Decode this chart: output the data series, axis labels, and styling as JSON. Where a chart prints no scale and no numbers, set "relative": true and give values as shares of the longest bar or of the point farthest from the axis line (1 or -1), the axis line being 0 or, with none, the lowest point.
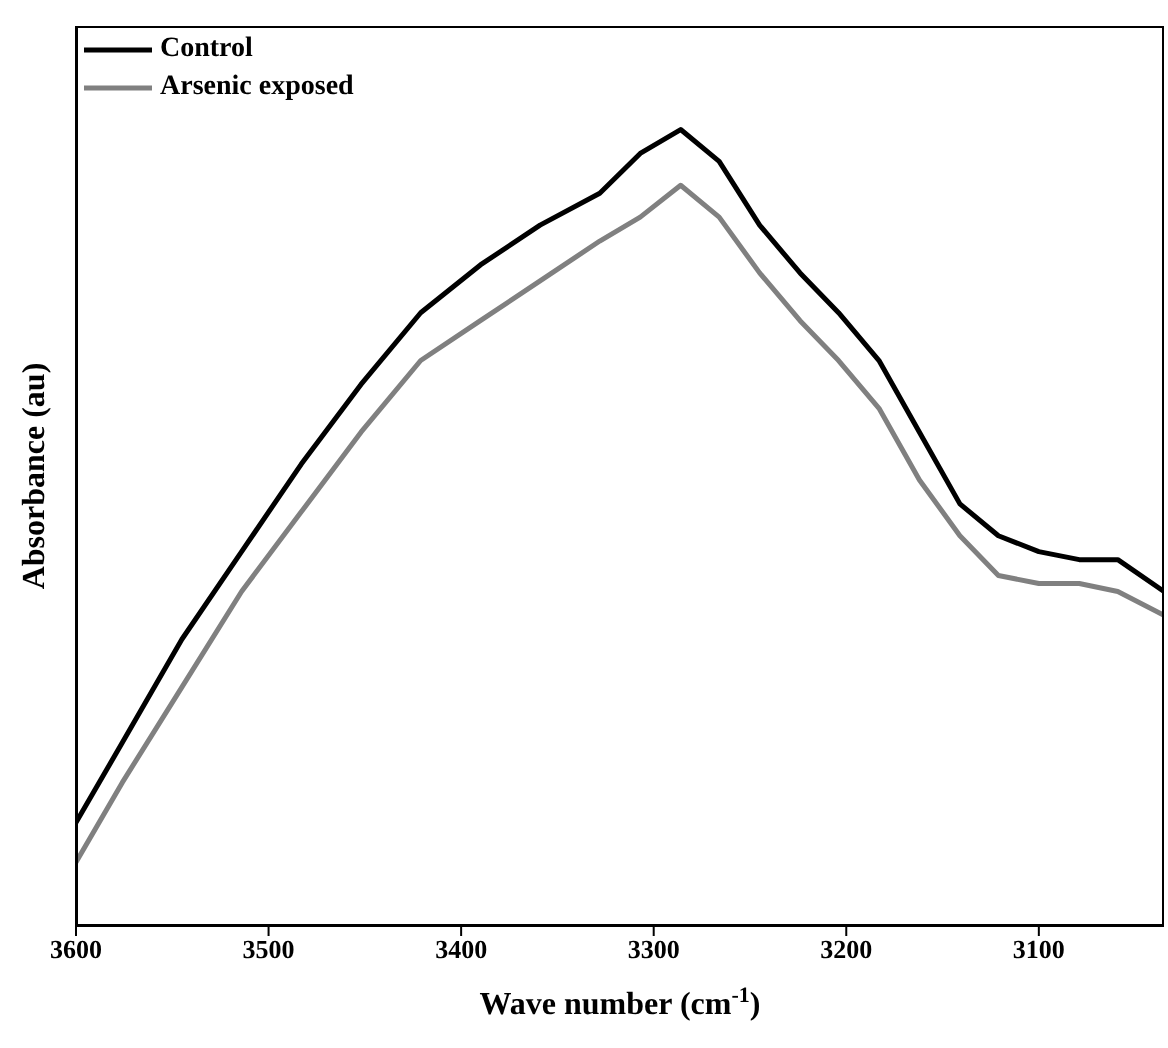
{
  "chart_data": {
    "type": "line",
    "xlabel": "Wave number (cm$^{-1}$)",
    "ylabel": "Absorbance (au)",
    "relative": true,
    "legend": "top left",
    "grid": false,
    "marker": "none",
    "line_style": "solid",
    "xlim": [
      3600,
      3035
    ],
    "xticks": [
      3600,
      3500,
      3400,
      3300,
      3200,
      3100
    ],
    "x": [
      3600,
      3576,
      3545,
      3514,
      3483,
      3452,
      3421,
      3390,
      3359,
      3328,
      3307,
      3286,
      3266,
      3245,
      3224,
      3204,
      3183,
      3162,
      3141,
      3121,
      3100,
      3079,
      3059,
      3035
    ],
    "series": [
      {
        "name": "Control",
        "color": "#000000",
        "values": [
          0.13,
          0.23,
          0.36,
          0.47,
          0.58,
          0.68,
          0.77,
          0.83,
          0.88,
          0.92,
          0.97,
          1.0,
          0.96,
          0.88,
          0.82,
          0.77,
          0.71,
          0.62,
          0.53,
          0.49,
          0.47,
          0.46,
          0.46,
          0.42
        ]
      },
      {
        "name": "Arsenic exposed",
        "color": "#808080",
        "values": [
          0.08,
          0.18,
          0.3,
          0.42,
          0.52,
          0.62,
          0.71,
          0.76,
          0.81,
          0.86,
          0.89,
          0.93,
          0.89,
          0.82,
          0.76,
          0.71,
          0.65,
          0.56,
          0.49,
          0.44,
          0.43,
          0.43,
          0.42,
          0.39
        ]
      }
    ]
  }
}
